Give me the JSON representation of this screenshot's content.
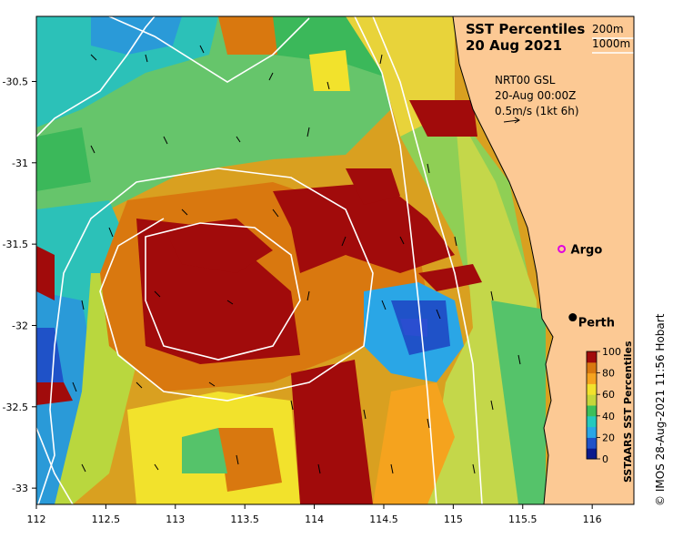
{
  "title": {
    "line1": "SST Percentiles",
    "line2": "20 Aug 2021"
  },
  "contour_legend": [
    "200m",
    "1000m"
  ],
  "current_info": {
    "line1": "NRT00 GSL",
    "line2": "20-Aug 00:00Z",
    "line3": "0.5m/s (1kt 6h)"
  },
  "places": [
    {
      "name": "Argo",
      "lon": 115.78,
      "lat": -31.53,
      "marker": "ring",
      "color": "#e000e0"
    },
    {
      "name": "Perth",
      "lon": 115.86,
      "lat": -31.95,
      "marker": "dot",
      "color": "#000000"
    }
  ],
  "x_axis": {
    "ticks": [
      "112",
      "112.5",
      "113",
      "113.5",
      "114",
      "114.5",
      "115",
      "115.5",
      "116"
    ],
    "range": [
      112,
      116.3
    ]
  },
  "y_axis": {
    "ticks": [
      "-30.5",
      "-31",
      "-31.5",
      "-32",
      "-32.5",
      "-33"
    ],
    "range": [
      -33.1,
      -30.1
    ]
  },
  "colorbar": {
    "label": "SSTAARS SST Percentiles",
    "ticks": [
      "100",
      "80",
      "60",
      "40",
      "20",
      "0"
    ],
    "colors": [
      "#0b1a8c",
      "#1f52c8",
      "#2aa6e6",
      "#25c9bd",
      "#3dbf5a",
      "#c5d63a",
      "#f2e22c",
      "#f5a31e",
      "#d9780f",
      "#a10b0b"
    ]
  },
  "credit": "© IMOS 28-Aug-2021 11:56 Hobart",
  "colors": {
    "land": "#fcc994",
    "contour": "#ffffff"
  }
}
